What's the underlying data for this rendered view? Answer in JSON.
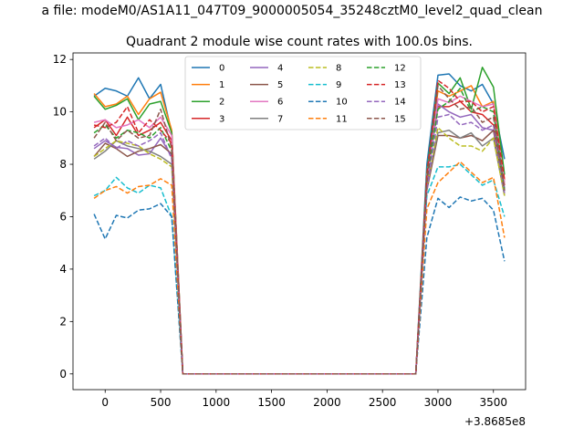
{
  "chart_data": {
    "type": "line",
    "suptitle": "a file: modeM0/AS1A11_047T09_9000005054_35248cztM0_level2_quad_clean",
    "title": "Quadrant 2 module wise count rates with 100.0s bins.",
    "xlabel": "",
    "ylabel": "",
    "offset_text": "+3.8685e8",
    "xlim": [
      -290,
      3790
    ],
    "ylim": [
      -0.6,
      12.25
    ],
    "xticks": [
      0,
      500,
      1000,
      1500,
      2000,
      2500,
      3000,
      3500
    ],
    "xtick_labels": [
      "0",
      "500",
      "1000",
      "1500",
      "2000",
      "2500",
      "3000",
      "3500"
    ],
    "yticks": [
      0,
      2,
      4,
      6,
      8,
      10,
      12
    ],
    "ytick_labels": [
      "0",
      "2",
      "4",
      "6",
      "8",
      "10",
      "12"
    ],
    "grid": false,
    "legend": {
      "placement": "top-center",
      "columns": 4
    },
    "x": [
      -100,
      0,
      100,
      200,
      300,
      400,
      500,
      600,
      700,
      800,
      900,
      1000,
      1100,
      1200,
      1300,
      1400,
      1500,
      1600,
      1700,
      1800,
      1900,
      2000,
      2100,
      2200,
      2300,
      2400,
      2500,
      2600,
      2700,
      2800,
      2900,
      3000,
      3100,
      3200,
      3300,
      3400,
      3500,
      3600
    ],
    "series": [
      {
        "name": "0",
        "color": "#1f77b4",
        "dashed": false,
        "values": [
          10.6,
          10.9,
          10.8,
          10.6,
          11.3,
          10.5,
          11.05,
          9.2,
          0,
          0,
          0,
          0,
          0,
          0,
          0,
          0,
          0,
          0,
          0,
          0,
          0,
          0,
          0,
          0,
          0,
          0,
          0,
          0,
          0,
          0,
          8.0,
          11.4,
          11.45,
          11.0,
          10.8,
          11.05,
          10.3,
          8.2
        ]
      },
      {
        "name": "1",
        "color": "#ff7f0e",
        "dashed": false,
        "values": [
          10.7,
          10.2,
          10.3,
          10.6,
          9.9,
          10.5,
          10.75,
          9.3,
          0,
          0,
          0,
          0,
          0,
          0,
          0,
          0,
          0,
          0,
          0,
          0,
          0,
          0,
          0,
          0,
          0,
          0,
          0,
          0,
          0,
          0,
          7.5,
          10.8,
          10.6,
          10.8,
          11.0,
          10.2,
          10.4,
          7.4
        ]
      },
      {
        "name": "2",
        "color": "#2ca02c",
        "dashed": false,
        "values": [
          10.6,
          10.1,
          10.25,
          10.5,
          9.7,
          10.3,
          10.4,
          9.2,
          0,
          0,
          0,
          0,
          0,
          0,
          0,
          0,
          0,
          0,
          0,
          0,
          0,
          0,
          0,
          0,
          0,
          0,
          0,
          0,
          0,
          0,
          7.7,
          11.1,
          10.7,
          11.3,
          10.1,
          11.7,
          10.95,
          7.6
        ]
      },
      {
        "name": "3",
        "color": "#d62728",
        "dashed": false,
        "values": [
          9.4,
          9.7,
          9.1,
          9.8,
          9.1,
          9.3,
          9.6,
          8.9,
          0,
          0,
          0,
          0,
          0,
          0,
          0,
          0,
          0,
          0,
          0,
          0,
          0,
          0,
          0,
          0,
          0,
          0,
          0,
          0,
          0,
          0,
          7.5,
          10.2,
          10.2,
          10.4,
          10.0,
          9.9,
          9.5,
          7.2
        ]
      },
      {
        "name": "4",
        "color": "#9467bd",
        "dashed": false,
        "values": [
          8.6,
          8.9,
          8.65,
          8.6,
          8.35,
          8.4,
          9.0,
          8.3,
          0,
          0,
          0,
          0,
          0,
          0,
          0,
          0,
          0,
          0,
          0,
          0,
          0,
          0,
          0,
          0,
          0,
          0,
          0,
          0,
          0,
          0,
          7.3,
          10.3,
          10.0,
          9.8,
          9.9,
          9.4,
          9.3,
          7.1
        ]
      },
      {
        "name": "5",
        "color": "#8c564b",
        "dashed": false,
        "values": [
          8.3,
          8.8,
          8.6,
          8.3,
          8.5,
          8.6,
          8.75,
          8.4,
          0,
          0,
          0,
          0,
          0,
          0,
          0,
          0,
          0,
          0,
          0,
          0,
          0,
          0,
          0,
          0,
          0,
          0,
          0,
          0,
          0,
          0,
          7.0,
          9.1,
          9.1,
          9.0,
          9.1,
          8.9,
          9.3,
          7.0
        ]
      },
      {
        "name": "6",
        "color": "#e377c2",
        "dashed": false,
        "values": [
          9.6,
          9.7,
          9.4,
          9.5,
          9.7,
          9.4,
          9.8,
          9.1,
          0,
          0,
          0,
          0,
          0,
          0,
          0,
          0,
          0,
          0,
          0,
          0,
          0,
          0,
          0,
          0,
          0,
          0,
          0,
          0,
          0,
          0,
          7.5,
          10.5,
          10.35,
          10.6,
          10.4,
          10.2,
          10.3,
          7.3
        ]
      },
      {
        "name": "7",
        "color": "#7f7f7f",
        "dashed": false,
        "values": [
          8.2,
          8.5,
          8.9,
          8.7,
          8.6,
          8.5,
          8.3,
          8.0,
          0,
          0,
          0,
          0,
          0,
          0,
          0,
          0,
          0,
          0,
          0,
          0,
          0,
          0,
          0,
          0,
          0,
          0,
          0,
          0,
          0,
          0,
          7.2,
          9.2,
          9.3,
          9.0,
          9.2,
          8.7,
          9.0,
          6.8
        ]
      },
      {
        "name": "8",
        "color": "#bcbd22",
        "dashed": true,
        "values": [
          8.3,
          8.6,
          8.9,
          8.8,
          8.7,
          8.4,
          8.2,
          7.9,
          0,
          0,
          0,
          0,
          0,
          0,
          0,
          0,
          0,
          0,
          0,
          0,
          0,
          0,
          0,
          0,
          0,
          0,
          0,
          0,
          0,
          0,
          7.1,
          9.4,
          9.0,
          8.7,
          8.7,
          8.5,
          9.0,
          6.8
        ]
      },
      {
        "name": "9",
        "color": "#17becf",
        "dashed": true,
        "values": [
          6.8,
          7.0,
          7.5,
          7.1,
          6.9,
          7.2,
          7.1,
          6.0,
          0,
          0,
          0,
          0,
          0,
          0,
          0,
          0,
          0,
          0,
          0,
          0,
          0,
          0,
          0,
          0,
          0,
          0,
          0,
          0,
          0,
          0,
          6.8,
          7.9,
          7.9,
          8.0,
          7.6,
          7.2,
          7.4,
          6.0
        ]
      },
      {
        "name": "10",
        "color": "#1f77b4",
        "dashed": true,
        "values": [
          6.1,
          5.15,
          6.05,
          5.95,
          6.25,
          6.3,
          6.5,
          6.0,
          0,
          0,
          0,
          0,
          0,
          0,
          0,
          0,
          0,
          0,
          0,
          0,
          0,
          0,
          0,
          0,
          0,
          0,
          0,
          0,
          0,
          0,
          5.2,
          6.7,
          6.35,
          6.75,
          6.6,
          6.7,
          6.25,
          4.3
        ]
      },
      {
        "name": "11",
        "color": "#ff7f0e",
        "dashed": true,
        "values": [
          6.7,
          7.0,
          7.15,
          6.9,
          7.15,
          7.2,
          7.45,
          7.2,
          0,
          0,
          0,
          0,
          0,
          0,
          0,
          0,
          0,
          0,
          0,
          0,
          0,
          0,
          0,
          0,
          0,
          0,
          0,
          0,
          0,
          0,
          6.3,
          7.3,
          7.7,
          8.1,
          7.7,
          7.3,
          7.5,
          5.2
        ]
      },
      {
        "name": "12",
        "color": "#2ca02c",
        "dashed": true,
        "values": [
          9.2,
          9.5,
          9.0,
          9.3,
          9.2,
          9.0,
          9.4,
          8.5,
          0,
          0,
          0,
          0,
          0,
          0,
          0,
          0,
          0,
          0,
          0,
          0,
          0,
          0,
          0,
          0,
          0,
          0,
          0,
          0,
          0,
          0,
          7.4,
          10.1,
          10.4,
          10.9,
          10.0,
          10.2,
          10.0,
          7.0
        ]
      },
      {
        "name": "13",
        "color": "#d62728",
        "dashed": true,
        "values": [
          9.5,
          9.4,
          9.6,
          10.2,
          9.2,
          9.7,
          9.3,
          8.8,
          0,
          0,
          0,
          0,
          0,
          0,
          0,
          0,
          0,
          0,
          0,
          0,
          0,
          0,
          0,
          0,
          0,
          0,
          0,
          0,
          0,
          0,
          7.6,
          11.2,
          10.9,
          10.4,
          10.4,
          10.0,
          10.2,
          7.4
        ]
      },
      {
        "name": "14",
        "color": "#9467bd",
        "dashed": true,
        "values": [
          8.7,
          9.0,
          8.6,
          8.9,
          8.7,
          8.9,
          9.2,
          8.2,
          0,
          0,
          0,
          0,
          0,
          0,
          0,
          0,
          0,
          0,
          0,
          0,
          0,
          0,
          0,
          0,
          0,
          0,
          0,
          0,
          0,
          0,
          7.0,
          9.8,
          9.9,
          9.5,
          9.6,
          9.3,
          9.5,
          6.9
        ]
      },
      {
        "name": "15",
        "color": "#8c564b",
        "dashed": true,
        "values": [
          9.0,
          9.6,
          8.9,
          9.3,
          9.0,
          9.1,
          10.1,
          8.6,
          0,
          0,
          0,
          0,
          0,
          0,
          0,
          0,
          0,
          0,
          0,
          0,
          0,
          0,
          0,
          0,
          0,
          0,
          0,
          0,
          0,
          0,
          7.3,
          11.0,
          10.5,
          10.1,
          10.2,
          9.6,
          9.8,
          7.0
        ]
      }
    ]
  }
}
